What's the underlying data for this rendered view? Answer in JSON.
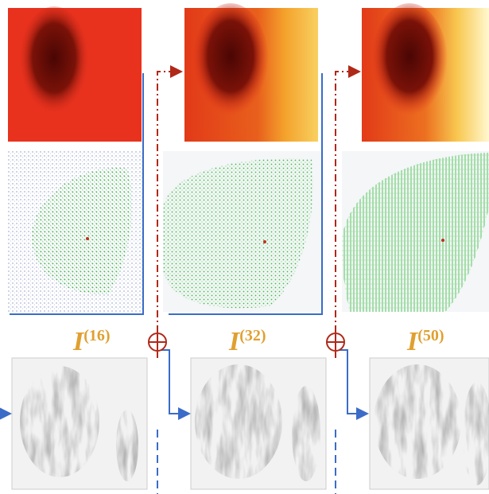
{
  "labels": [
    {
      "base": "I",
      "sup": "(16)"
    },
    {
      "base": "I",
      "sup": "(32)"
    },
    {
      "base": "I",
      "sup": "(50)"
    }
  ]
}
